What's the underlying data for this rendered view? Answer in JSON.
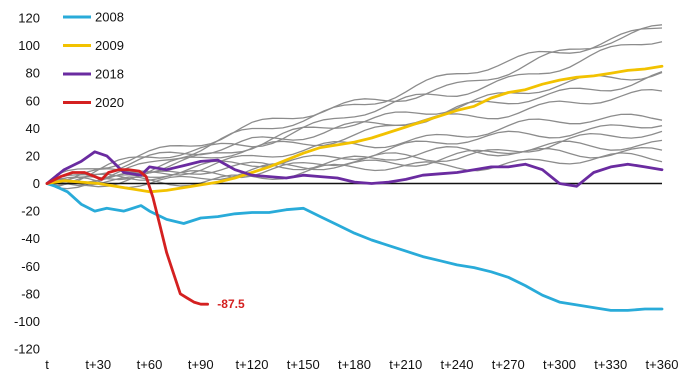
{
  "chart_data": {
    "type": "line",
    "title": "",
    "xlabel": "",
    "ylabel": "",
    "x_ticks": [
      "t",
      "t+30",
      "t+60",
      "t+90",
      "t+120",
      "t+150",
      "t+180",
      "t+210",
      "t+240",
      "t+270",
      "t+300",
      "t+330",
      "t+360"
    ],
    "y_ticks": [
      "120",
      "100",
      "80",
      "60",
      "40",
      "20",
      "0",
      "-20",
      "-40",
      "-60",
      "-80",
      "-100",
      "-120"
    ],
    "xlim": [
      0,
      360
    ],
    "ylim": [
      -120,
      120
    ],
    "grid": false,
    "legend_position": "top-left",
    "series": [
      {
        "name": "2008",
        "color": "#29ABD9",
        "points": [
          [
            0,
            0
          ],
          [
            5,
            -2
          ],
          [
            12,
            -6
          ],
          [
            20,
            -15
          ],
          [
            28,
            -20
          ],
          [
            35,
            -18
          ],
          [
            45,
            -20
          ],
          [
            55,
            -16
          ],
          [
            60,
            -20
          ],
          [
            70,
            -26
          ],
          [
            80,
            -29
          ],
          [
            90,
            -25
          ],
          [
            100,
            -24
          ],
          [
            110,
            -22
          ],
          [
            120,
            -21
          ],
          [
            130,
            -21
          ],
          [
            140,
            -19
          ],
          [
            150,
            -18
          ],
          [
            160,
            -24
          ],
          [
            170,
            -30
          ],
          [
            180,
            -36
          ],
          [
            190,
            -41
          ],
          [
            200,
            -45
          ],
          [
            210,
            -49
          ],
          [
            220,
            -53
          ],
          [
            230,
            -56
          ],
          [
            240,
            -59
          ],
          [
            250,
            -61
          ],
          [
            260,
            -64
          ],
          [
            270,
            -68
          ],
          [
            280,
            -74
          ],
          [
            290,
            -81
          ],
          [
            300,
            -86
          ],
          [
            310,
            -88
          ],
          [
            320,
            -90
          ],
          [
            330,
            -92
          ],
          [
            340,
            -92
          ],
          [
            350,
            -91
          ],
          [
            360,
            -91
          ]
        ]
      },
      {
        "name": "2009",
        "color": "#F2C200",
        "points": [
          [
            0,
            0
          ],
          [
            10,
            2
          ],
          [
            20,
            1
          ],
          [
            30,
            0
          ],
          [
            40,
            -2
          ],
          [
            50,
            -4
          ],
          [
            60,
            -6
          ],
          [
            70,
            -5
          ],
          [
            80,
            -3
          ],
          [
            90,
            -1
          ],
          [
            100,
            1
          ],
          [
            110,
            4
          ],
          [
            120,
            8
          ],
          [
            130,
            12
          ],
          [
            140,
            17
          ],
          [
            150,
            22
          ],
          [
            160,
            26
          ],
          [
            170,
            28
          ],
          [
            180,
            30
          ],
          [
            190,
            33
          ],
          [
            200,
            37
          ],
          [
            210,
            41
          ],
          [
            220,
            45
          ],
          [
            230,
            49
          ],
          [
            240,
            53
          ],
          [
            250,
            56
          ],
          [
            260,
            62
          ],
          [
            270,
            66
          ],
          [
            280,
            68
          ],
          [
            290,
            72
          ],
          [
            300,
            75
          ],
          [
            310,
            77
          ],
          [
            320,
            78
          ],
          [
            330,
            80
          ],
          [
            340,
            82
          ],
          [
            350,
            83
          ],
          [
            360,
            85
          ]
        ]
      },
      {
        "name": "2018",
        "color": "#6A2BA0",
        "points": [
          [
            0,
            0
          ],
          [
            10,
            10
          ],
          [
            20,
            16
          ],
          [
            28,
            23
          ],
          [
            35,
            20
          ],
          [
            45,
            8
          ],
          [
            55,
            6
          ],
          [
            60,
            12
          ],
          [
            70,
            10
          ],
          [
            80,
            13
          ],
          [
            90,
            16
          ],
          [
            100,
            17
          ],
          [
            110,
            10
          ],
          [
            120,
            6
          ],
          [
            130,
            5
          ],
          [
            140,
            4
          ],
          [
            150,
            6
          ],
          [
            160,
            5
          ],
          [
            170,
            4
          ],
          [
            180,
            1
          ],
          [
            190,
            0
          ],
          [
            200,
            1
          ],
          [
            210,
            3
          ],
          [
            220,
            6
          ],
          [
            230,
            7
          ],
          [
            240,
            8
          ],
          [
            250,
            10
          ],
          [
            260,
            12
          ],
          [
            270,
            12
          ],
          [
            280,
            14
          ],
          [
            290,
            10
          ],
          [
            300,
            0
          ],
          [
            310,
            -2
          ],
          [
            320,
            8
          ],
          [
            330,
            12
          ],
          [
            340,
            14
          ],
          [
            350,
            12
          ],
          [
            360,
            10
          ]
        ]
      },
      {
        "name": "2020",
        "color": "#D42020",
        "points": [
          [
            0,
            0
          ],
          [
            8,
            5
          ],
          [
            15,
            8
          ],
          [
            22,
            8
          ],
          [
            28,
            5
          ],
          [
            32,
            3
          ],
          [
            36,
            8
          ],
          [
            42,
            10
          ],
          [
            48,
            10
          ],
          [
            54,
            9
          ],
          [
            58,
            5
          ],
          [
            62,
            -10
          ],
          [
            66,
            -30
          ],
          [
            70,
            -50
          ],
          [
            74,
            -65
          ],
          [
            78,
            -80
          ],
          [
            82,
            -83
          ],
          [
            86,
            -86
          ],
          [
            90,
            -87.5
          ],
          [
            94,
            -87.5
          ]
        ]
      }
    ],
    "background_series": [
      {
        "points": [
          [
            0,
            0
          ],
          [
            60,
            22
          ],
          [
            120,
            42
          ],
          [
            180,
            56
          ],
          [
            240,
            72
          ],
          [
            300,
            92
          ],
          [
            360,
            114
          ]
        ]
      },
      {
        "points": [
          [
            0,
            0
          ],
          [
            60,
            14
          ],
          [
            120,
            36
          ],
          [
            180,
            58
          ],
          [
            240,
            78
          ],
          [
            300,
            96
          ],
          [
            360,
            115
          ]
        ]
      },
      {
        "points": [
          [
            0,
            0
          ],
          [
            60,
            18
          ],
          [
            120,
            30
          ],
          [
            180,
            50
          ],
          [
            240,
            66
          ],
          [
            300,
            86
          ],
          [
            360,
            104
          ]
        ]
      },
      {
        "points": [
          [
            0,
            0
          ],
          [
            60,
            12
          ],
          [
            120,
            28
          ],
          [
            180,
            44
          ],
          [
            240,
            58
          ],
          [
            300,
            70
          ],
          [
            360,
            82
          ]
        ]
      },
      {
        "points": [
          [
            0,
            0
          ],
          [
            60,
            10
          ],
          [
            120,
            24
          ],
          [
            180,
            36
          ],
          [
            240,
            52
          ],
          [
            300,
            66
          ],
          [
            360,
            78
          ]
        ]
      },
      {
        "points": [
          [
            0,
            0
          ],
          [
            60,
            16
          ],
          [
            120,
            32
          ],
          [
            180,
            40
          ],
          [
            240,
            48
          ],
          [
            300,
            58
          ],
          [
            360,
            64
          ]
        ]
      },
      {
        "points": [
          [
            0,
            0
          ],
          [
            60,
            8
          ],
          [
            120,
            18
          ],
          [
            180,
            28
          ],
          [
            240,
            36
          ],
          [
            300,
            44
          ],
          [
            360,
            50
          ]
        ]
      },
      {
        "points": [
          [
            0,
            0
          ],
          [
            60,
            6
          ],
          [
            120,
            14
          ],
          [
            180,
            22
          ],
          [
            240,
            30
          ],
          [
            300,
            38
          ],
          [
            360,
            44
          ]
        ]
      },
      {
        "points": [
          [
            0,
            0
          ],
          [
            60,
            4
          ],
          [
            120,
            10
          ],
          [
            180,
            16
          ],
          [
            240,
            20
          ],
          [
            300,
            30
          ],
          [
            360,
            36
          ]
        ]
      },
      {
        "points": [
          [
            0,
            0
          ],
          [
            60,
            2
          ],
          [
            120,
            8
          ],
          [
            180,
            14
          ],
          [
            240,
            20
          ],
          [
            300,
            26
          ],
          [
            360,
            30
          ]
        ]
      },
      {
        "points": [
          [
            0,
            0
          ],
          [
            60,
            4
          ],
          [
            120,
            12
          ],
          [
            180,
            18
          ],
          [
            240,
            22
          ],
          [
            300,
            24
          ],
          [
            360,
            22
          ]
        ]
      },
      {
        "points": [
          [
            0,
            0
          ],
          [
            60,
            0
          ],
          [
            120,
            6
          ],
          [
            180,
            10
          ],
          [
            240,
            14
          ],
          [
            300,
            16
          ],
          [
            360,
            18
          ]
        ]
      }
    ],
    "annotations": [
      {
        "text": "-87.5",
        "x": 95,
        "y": -87.5,
        "color": "#D42020"
      }
    ]
  }
}
